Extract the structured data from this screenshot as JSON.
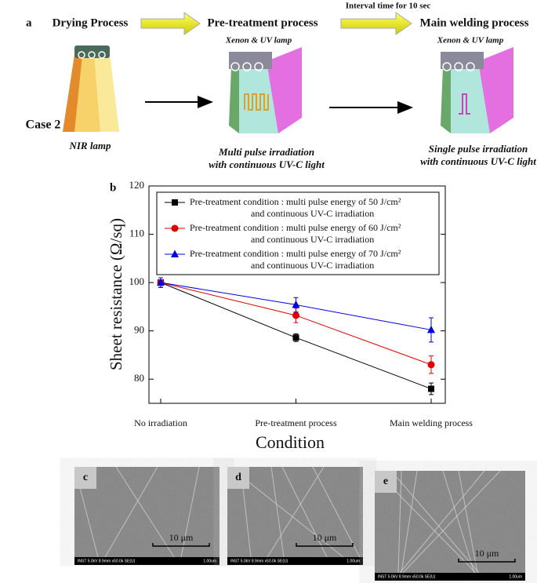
{
  "panel_a": {
    "label": "a",
    "steps": [
      "Drying Process",
      "Pre-treatment process",
      "Main welding process"
    ],
    "interval": "Interval time for 10 sec",
    "lamp_label": "Xenon & UV lamp",
    "case": "Case 2",
    "captions": [
      [
        "NIR lamp"
      ],
      [
        "Multi pulse irradiation",
        "with continuous UV-C light"
      ],
      [
        "Single pulse irradiation",
        "with continuous UV-C light"
      ]
    ]
  },
  "chart_data": {
    "type": "line",
    "panel_label": "b",
    "x_label": "Condition",
    "y_label": "Sheet resistance (Ω/sq)",
    "categories": [
      "No irradiation",
      "Pre-treatment process",
      "Main welding process"
    ],
    "series": [
      {
        "name": "Pre-treatment condition : multi pulse energy of 50 J/cm² and continuous UV-C irradiation",
        "color": "#000000",
        "marker": "square",
        "values": [
          100,
          88.6,
          78.0
        ],
        "errors": [
          1.0,
          0.8,
          1.2
        ]
      },
      {
        "name": "Pre-treatment condition : multi pulse energy of 60 J/cm² and continuous UV-C irradiation",
        "color": "#e00000",
        "marker": "circle",
        "values": [
          100,
          93.2,
          83.0
        ],
        "errors": [
          1.0,
          1.5,
          1.8
        ]
      },
      {
        "name": "Pre-treatment condition : multi pulse energy of 70 J/cm² and continuous UV-C irradiation",
        "color": "#0000e0",
        "marker": "triangle",
        "values": [
          100,
          95.4,
          90.2
        ],
        "errors": [
          1.0,
          1.5,
          2.5
        ]
      }
    ],
    "ylim": [
      75,
      120
    ],
    "yticks": [
      80,
      90,
      100,
      110,
      120
    ],
    "legend": "upper-right"
  },
  "sem_panels": [
    {
      "label": "c",
      "scale": "10 μm",
      "info": "INST 5.0kV 8.9mm x50.0k SE(U)",
      "scale_small": "1.00um"
    },
    {
      "label": "d",
      "scale": "10 μm",
      "info": "INST 5.0kV 8.9mm x50.0k SE(U)",
      "scale_small": "1.00um"
    },
    {
      "label": "e",
      "scale": "10 μm",
      "info": "INST 5.0kV 8.9mm x50.0k SE(U)",
      "scale_small": "1.00um"
    }
  ]
}
